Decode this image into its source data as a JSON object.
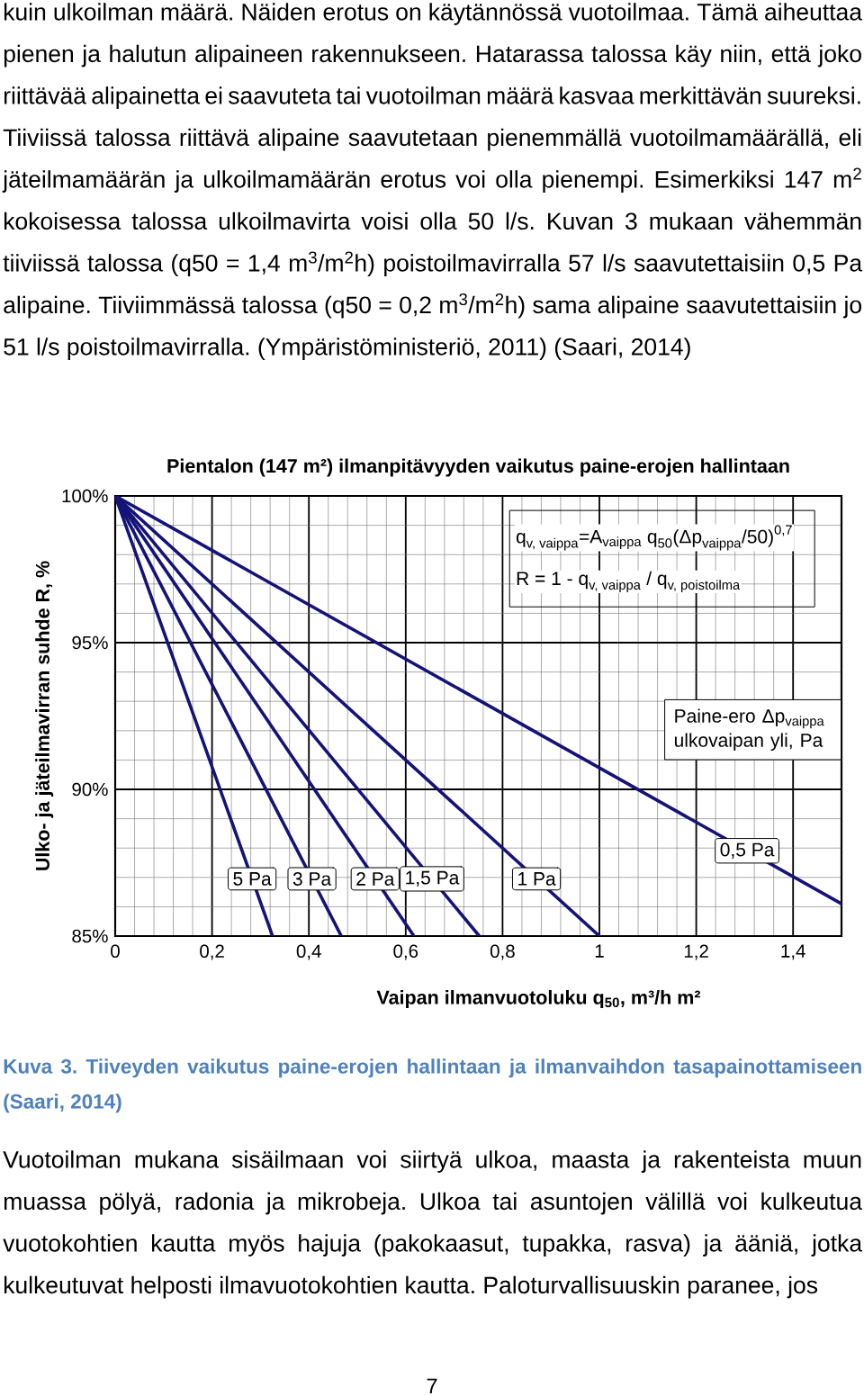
{
  "chart_data": {
    "type": "line",
    "title": "Pientalon (147 m²) ilmanpitävyyden vaikutus paine-erojen hallintaan",
    "xlabel": "Vaipan ilmanvuotoluku q$_{50}$, m³/h m²",
    "ylabel": "Ulko- ja jäteilmavirran suhde R, %",
    "legend_title": "Paine-ero Δp$_{vaippa}$ ulkovaipan yli, Pa",
    "xlim": [
      0,
      1.5
    ],
    "ylim": [
      85,
      100
    ],
    "xticks": [
      0,
      {
        "value": 0.2,
        "label": "0,2"
      },
      {
        "value": 0.4,
        "label": "0,4"
      },
      {
        "value": 0.6,
        "label": "0,6"
      },
      {
        "value": 0.8,
        "label": "0,8"
      },
      1,
      {
        "value": 1.2,
        "label": "1,2"
      },
      {
        "value": 1.4,
        "label": "1,4"
      }
    ],
    "yticks": [
      {
        "value": 85,
        "label": "85%"
      },
      {
        "value": 90,
        "label": "90%"
      },
      {
        "value": 95,
        "label": "95%"
      },
      {
        "value": 100,
        "label": "100%"
      }
    ],
    "grid": true,
    "series": [
      {
        "name": "5 Pa",
        "color": "#141478",
        "x": [
          0,
          0.325
        ],
        "values": [
          100,
          85
        ]
      },
      {
        "name": "3 Pa",
        "color": "#141478",
        "x": [
          0,
          0.467
        ],
        "values": [
          100,
          85
        ]
      },
      {
        "name": "2 Pa",
        "color": "#141478",
        "x": [
          0,
          0.617
        ],
        "values": [
          100,
          85
        ]
      },
      {
        "name": "1,5 Pa",
        "color": "#141478",
        "x": [
          0,
          0.752
        ],
        "values": [
          100,
          85
        ]
      },
      {
        "name": "1 Pa",
        "color": "#141478",
        "x": [
          0,
          1.0
        ],
        "values": [
          100,
          85
        ]
      },
      {
        "name": "0,5 Pa",
        "color": "#141478",
        "x": [
          0,
          1.5
        ],
        "values": [
          100,
          86.1
        ]
      }
    ],
    "annotations": [
      "\\text{q}_{\\text{v, vaippa}}\\text{=A}_{\\text{vaippa}}\\text{ q}_{\\text{50}}\\text{(Δp}_{\\text{vaippa}}\\text{/50)}^{\\text{0,7}}",
      "\\text{R = 1 - q}_{\\text{v, vaippa}}\\text{ / q}_{\\text{v, poistoilma}}",
      "kuin ulkoilman määrä. Näiden erotus on käytännössä vuotoilmaa. Tämä aiheuttaa pienen ja halutun alipaineen rakennukseen. Hatarassa talossa käy niin, että joko riittävää alipainetta ei saavuteta tai vuotoilman määrä kasvaa merkittävän suureksi. Tiiviissä talossa riittävä alipaine saavutetaan pienemmällä vuotoilmamäärällä, eli jäteilmamäärän ja ulkoilmamäärän erotus voi olla pienempi. Esimerkiksi 147 m$^{2}$ kokoisessa talossa ulkoilmavirta voisi olla 50 l/s. Kuvan 3 mukaan vähemmän tiiviissä talossa (q50 = 1,4 m$^{3}$/m$^{2}$h) poistoilmavirralla 57 l/s saavutettaisiin 0,5 Pa alipaine. Tiiviimmässä talossa (q50 = 0,2 m$^{3}$/m$^{2}$h) sama alipaine saavutettaisiin jo 51 l/s poistoilmavirralla. (Ympäristöministeriö, 2011) (Saari, 2014)",
      "Kuva 3. Tiiveyden vaikutus paine-erojen hallintaan ja ilmanvaihdon tasapainottamiseen (Saari, 2014)",
      "Vuotoilman mukana sisäilmaan voi siirtyä ulkoa, maasta ja rakenteista muun muassa pölyä, radonia ja mikrobeja. Ulkoa tai asuntojen välillä voi kulkeutua vuotokohtien kautta myös hajuja (pakokaasut, tupakka, rasva) ja ääniä, jotka kulkeutuvat helposti ilmavuotokohtien kautta. Paloturvallisuuskin paranee, jos",
      "7"
    ]
  }
}
